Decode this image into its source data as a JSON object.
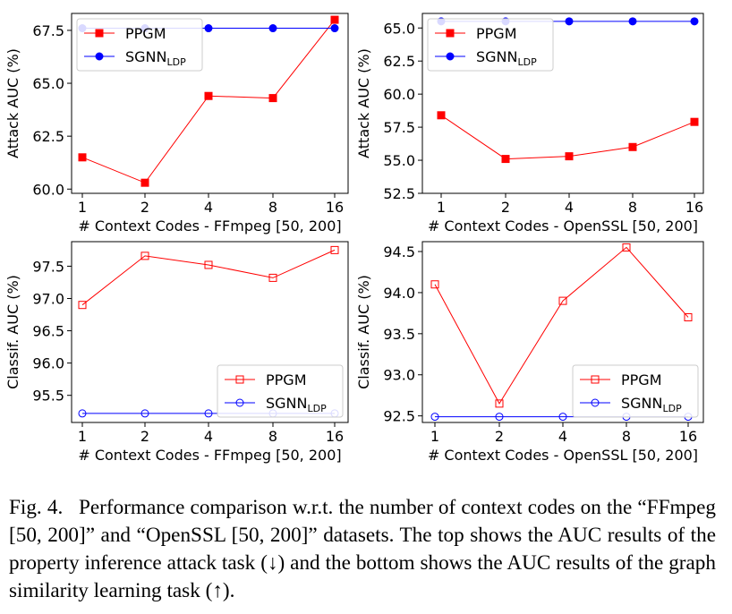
{
  "chart_data": [
    {
      "type": "line",
      "ylabel": "Attack AUC (%)",
      "xlabel": "# Context Codes - FFmpeg [50, 200]",
      "x": [
        "1",
        "2",
        "4",
        "8",
        "16"
      ],
      "ylim": [
        59.8,
        68.3
      ],
      "yticks": [
        60.0,
        62.5,
        65.0,
        67.5
      ],
      "ytick_labels": [
        "60.0",
        "62.5",
        "65.0",
        "67.5"
      ],
      "legend_loc": "upper-left",
      "marker_fill": "filled",
      "series": [
        {
          "name": "PPGM",
          "values": [
            61.5,
            60.3,
            64.4,
            64.3,
            68.0
          ],
          "color": "#ff0000",
          "marker": "square"
        },
        {
          "name": "SGNN",
          "name_sub": "LDP",
          "values": [
            67.6,
            67.6,
            67.6,
            67.6,
            67.6
          ],
          "color": "#0000ff",
          "marker": "circle"
        }
      ]
    },
    {
      "type": "line",
      "ylabel": "Attack AUC (%)",
      "xlabel": "# Context Codes - OpenSSL [50, 200]",
      "x": [
        "1",
        "2",
        "4",
        "8",
        "16"
      ],
      "ylim": [
        52.5,
        66.1
      ],
      "yticks": [
        52.5,
        55.0,
        57.5,
        60.0,
        62.5,
        65.0
      ],
      "ytick_labels": [
        "52.5",
        "55.0",
        "57.5",
        "60.0",
        "62.5",
        "65.0"
      ],
      "legend_loc": "upper-left",
      "marker_fill": "filled",
      "series": [
        {
          "name": "PPGM",
          "values": [
            58.4,
            55.1,
            55.3,
            56.0,
            57.9
          ],
          "color": "#ff0000",
          "marker": "square"
        },
        {
          "name": "SGNN",
          "name_sub": "LDP",
          "values": [
            65.5,
            65.5,
            65.5,
            65.5,
            65.5
          ],
          "color": "#0000ff",
          "marker": "circle"
        }
      ]
    },
    {
      "type": "line",
      "ylabel": "Classif. AUC (%)",
      "xlabel": "# Context Codes - FFmpeg [50, 200]",
      "x": [
        "1",
        "2",
        "4",
        "8",
        "16"
      ],
      "ylim": [
        95.08,
        97.88
      ],
      "yticks": [
        95.5,
        96.0,
        96.5,
        97.0,
        97.5
      ],
      "ytick_labels": [
        "95.5",
        "96.0",
        "96.5",
        "97.0",
        "97.5"
      ],
      "legend_loc": "lower-right",
      "marker_fill": "open",
      "series": [
        {
          "name": "PPGM",
          "values": [
            96.9,
            97.66,
            97.52,
            97.32,
            97.75
          ],
          "color": "#ff0000",
          "marker": "square"
        },
        {
          "name": "SGNN",
          "name_sub": "LDP",
          "values": [
            95.22,
            95.22,
            95.22,
            95.22,
            95.22
          ],
          "color": "#0000ff",
          "marker": "circle"
        }
      ]
    },
    {
      "type": "line",
      "ylabel": "Classif. AUC (%)",
      "xlabel": "# Context Codes - OpenSSL [50, 200]",
      "x": [
        "1",
        "2",
        "4",
        "8",
        "16"
      ],
      "ylim": [
        92.42,
        94.62
      ],
      "yticks": [
        92.5,
        93.0,
        93.5,
        94.0,
        94.5
      ],
      "ytick_labels": [
        "92.5",
        "93.0",
        "93.5",
        "94.0",
        "94.5"
      ],
      "legend_loc": "lower-right",
      "marker_fill": "open",
      "series": [
        {
          "name": "PPGM",
          "values": [
            94.1,
            92.65,
            93.9,
            94.55,
            93.7
          ],
          "color": "#ff0000",
          "marker": "square"
        },
        {
          "name": "SGNN",
          "name_sub": "LDP",
          "values": [
            92.49,
            92.49,
            92.49,
            92.49,
            92.49
          ],
          "color": "#0000ff",
          "marker": "circle"
        }
      ]
    }
  ],
  "caption": "Fig. 4.  Performance comparison w.r.t. the number of context codes on the “FFmpeg [50, 200]” and “OpenSSL [50, 200]” datasets. The top shows the AUC results of the property inference attack task (↓) and the bottom shows the AUC results of the graph similarity learning task (↑)."
}
